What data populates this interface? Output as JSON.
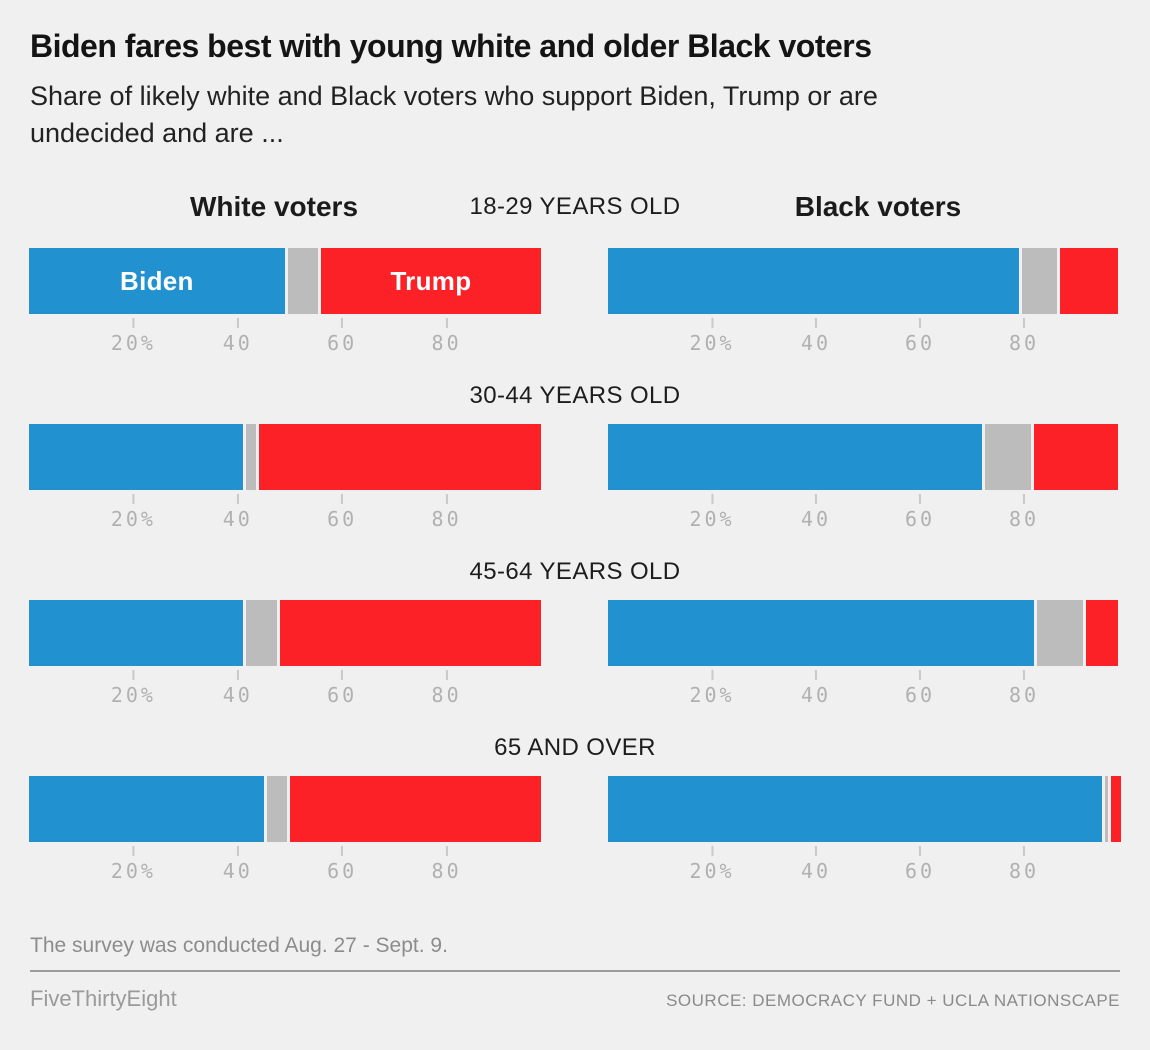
{
  "header": {
    "title": "Biden fares best with young white and older Black voters",
    "subtitle": "Share of likely white and Black voters who support Biden, Trump or are\nundecided and are ..."
  },
  "chart_data": {
    "type": "bar",
    "subtype": "stacked-horizontal-paired",
    "unit": "percent of likely voters",
    "categories": [
      "18-29 YEARS OLD",
      "30-44 YEARS OLD",
      "45-64 YEARS OLD",
      "65 AND OVER"
    ],
    "ticks": [
      "20%",
      "40",
      "60",
      "80"
    ],
    "xlim": [
      0,
      100
    ],
    "grid": false,
    "legend": "inline labels in first bar",
    "panels": [
      {
        "name": "White voters",
        "series": [
          {
            "name": "Biden",
            "color": "#2191d0",
            "values": [
              49,
              41,
              41,
              45
            ]
          },
          {
            "name": "Undecided",
            "color": "#bcbcbc",
            "values": [
              7,
              3,
              7,
              5
            ]
          },
          {
            "name": "Trump",
            "color": "#fb2127",
            "values": [
              42,
              54,
              50,
              48
            ]
          }
        ]
      },
      {
        "name": "Black voters",
        "series": [
          {
            "name": "Biden",
            "color": "#2191d0",
            "values": [
              79,
              72,
              82,
              95
            ]
          },
          {
            "name": "Undecided",
            "color": "#bcbcbc",
            "values": [
              8,
              10,
              10,
              1
            ]
          },
          {
            "name": "Trump",
            "color": "#fb2127",
            "values": [
              11,
              16,
              6,
              2
            ]
          }
        ]
      }
    ],
    "colors": {
      "background": "#f0f0f0",
      "biden_blue": "#2191d0",
      "undecided_gray": "#bcbcbc",
      "trump_red": "#fb2127"
    }
  },
  "footer": {
    "note": "The survey was conducted Aug. 27 - Sept. 9.",
    "brand": "FiveThirtyEight",
    "source": "SOURCE: DEMOCRACY FUND + UCLA NATIONSCAPE"
  }
}
